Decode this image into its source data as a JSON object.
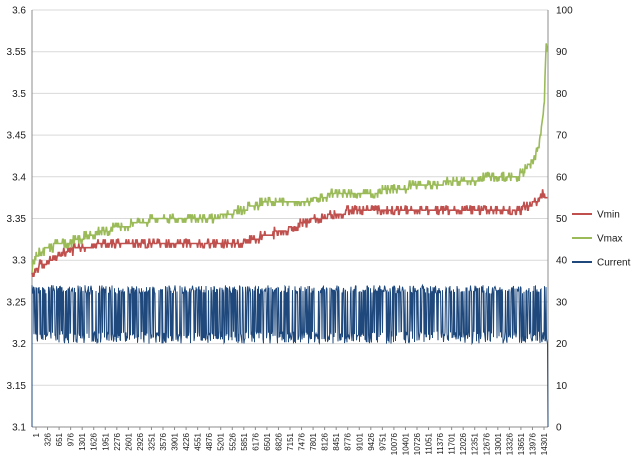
{
  "chart_data": {
    "type": "line",
    "title": "",
    "xlabel": "",
    "ylabel_left": "",
    "ylabel_right": "",
    "x_range": [
      1,
      14401
    ],
    "ylim_left": [
      3.1,
      3.6
    ],
    "ylim_right": [
      0,
      100
    ],
    "left_ticks": [
      "3.1",
      "3.15",
      "3.2",
      "3.25",
      "3.3",
      "3.35",
      "3.4",
      "3.45",
      "3.5",
      "3.55",
      "3.6"
    ],
    "right_ticks": [
      "0",
      "10",
      "20",
      "30",
      "40",
      "50",
      "60",
      "70",
      "80",
      "90",
      "100"
    ],
    "x_ticks": [
      "1",
      "326",
      "651",
      "976",
      "1301",
      "1626",
      "1951",
      "2276",
      "2601",
      "2926",
      "3251",
      "3576",
      "3901",
      "4226",
      "4551",
      "4876",
      "5201",
      "5526",
      "5851",
      "6176",
      "6501",
      "6826",
      "7151",
      "7476",
      "7801",
      "8126",
      "8451",
      "8776",
      "9101",
      "9426",
      "9751",
      "10076",
      "10401",
      "10726",
      "11051",
      "11376",
      "11701",
      "12026",
      "12351",
      "12676",
      "13001",
      "13326",
      "13651",
      "13976",
      "14301"
    ],
    "grid": true,
    "legend_position": "right",
    "series": [
      {
        "name": "Vmin",
        "axis": "left",
        "color": "#c0504d",
        "x": [
          1,
          100,
          300,
          500,
          700,
          1000,
          1300,
          1600,
          2000,
          2500,
          3000,
          4000,
          5000,
          5600,
          6200,
          6500,
          7000,
          7300,
          7600,
          8000,
          8500,
          9000,
          10000,
          11000,
          12000,
          13000,
          13500,
          13800,
          14100,
          14300,
          14401
        ],
        "values": [
          3.28,
          3.29,
          3.295,
          3.3,
          3.305,
          3.31,
          3.315,
          3.315,
          3.32,
          3.32,
          3.32,
          3.32,
          3.32,
          3.32,
          3.325,
          3.33,
          3.335,
          3.34,
          3.345,
          3.35,
          3.355,
          3.36,
          3.36,
          3.36,
          3.36,
          3.36,
          3.36,
          3.365,
          3.37,
          3.38,
          3.37
        ]
      },
      {
        "name": "Vmax",
        "axis": "left",
        "color": "#9bbb59",
        "x": [
          1,
          100,
          300,
          500,
          700,
          1000,
          1300,
          1600,
          2000,
          2500,
          3000,
          3500,
          4000,
          5000,
          5500,
          5800,
          6200,
          6500,
          7000,
          7500,
          8000,
          8500,
          9000,
          9500,
          10000,
          11000,
          12000,
          13000,
          13500,
          13700,
          13900,
          14100,
          14200,
          14300,
          14350,
          14401
        ],
        "values": [
          3.29,
          3.305,
          3.31,
          3.315,
          3.32,
          3.32,
          3.325,
          3.33,
          3.335,
          3.34,
          3.345,
          3.35,
          3.35,
          3.35,
          3.355,
          3.36,
          3.365,
          3.37,
          3.37,
          3.37,
          3.375,
          3.38,
          3.38,
          3.38,
          3.385,
          3.39,
          3.395,
          3.4,
          3.4,
          3.405,
          3.415,
          3.43,
          3.45,
          3.49,
          3.56,
          3.55
        ]
      },
      {
        "name": "Current",
        "axis": "right",
        "color": "#1f497d",
        "x": [
          1,
          14401
        ],
        "band": [
          20,
          34
        ],
        "values": [
          0,
          0
        ]
      }
    ]
  }
}
